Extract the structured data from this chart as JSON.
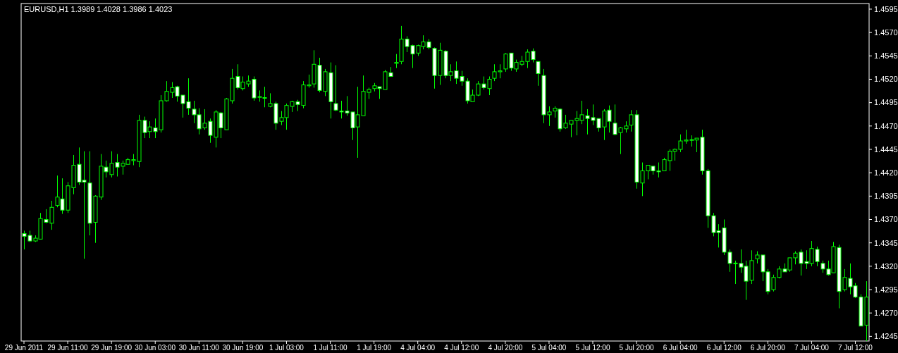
{
  "chart_data": {
    "type": "candlestick",
    "title": "EURUSD,H1  1.3989 1.4028 1.3986 1.4023",
    "color": "#00ff00",
    "categories": [
      "29 Jun 2011",
      null,
      null,
      null,
      null,
      null,
      null,
      null,
      "29 Jun 11:00",
      null,
      null,
      null,
      null,
      null,
      null,
      null,
      "29 Jun 19:00",
      null,
      null,
      null,
      null,
      null,
      null,
      null,
      "30 Jun 03:00",
      null,
      null,
      null,
      null,
      null,
      null,
      null,
      "30 Jun 11:00",
      null,
      null,
      null,
      null,
      null,
      null,
      null,
      "30 Jun 19:00",
      null,
      null,
      null,
      null,
      null,
      null,
      null,
      "1 Jul 03:00",
      null,
      null,
      null,
      null,
      null,
      null,
      null,
      "1 Jul 11:00",
      null,
      null,
      null,
      null,
      null,
      null,
      null,
      "1 Jul 19:00",
      null,
      null,
      null,
      null,
      null,
      null,
      null,
      "4 Jul 04:00",
      null,
      null,
      null,
      null,
      null,
      null,
      null,
      "4 Jul 12:00",
      null,
      null,
      null,
      null,
      null,
      null,
      null,
      "4 Jul 20:00",
      null,
      null,
      null,
      null,
      null,
      null,
      null,
      "5 Jul 04:00",
      null,
      null,
      null,
      null,
      null,
      null,
      null,
      "5 Jul 12:00",
      null,
      null,
      null,
      null,
      null,
      null,
      null,
      "5 Jul 20:00",
      null,
      null,
      null,
      null,
      null,
      null,
      null,
      "6 Jul 04:00",
      null,
      null,
      null,
      null,
      null,
      null,
      null,
      "6 Jul 12:00",
      null,
      null,
      null,
      null,
      null,
      null,
      null,
      "6 Jul 20:00",
      null,
      null,
      null,
      null,
      null,
      null,
      null,
      "7 Jul 04:00",
      null,
      null,
      null,
      null,
      null,
      null,
      null,
      "7 Jul 12:00",
      null,
      null
    ],
    "ohlc": [
      [
        1.4355,
        1.4358,
        1.4338,
        1.4352
      ],
      [
        1.4353,
        1.4358,
        1.4346,
        1.4347
      ],
      [
        1.4347,
        1.4353,
        1.4346,
        1.435
      ],
      [
        1.4349,
        1.4377,
        1.4349,
        1.4371
      ],
      [
        1.437,
        1.4381,
        1.4366,
        1.4367
      ],
      [
        1.4366,
        1.439,
        1.4359,
        1.4383
      ],
      [
        1.4385,
        1.4417,
        1.4383,
        1.4394
      ],
      [
        1.4392,
        1.4414,
        1.4376,
        1.438
      ],
      [
        1.438,
        1.441,
        1.4377,
        1.4406
      ],
      [
        1.4404,
        1.4439,
        1.4397,
        1.4428
      ],
      [
        1.4429,
        1.4447,
        1.4407,
        1.441
      ],
      [
        1.4412,
        1.4443,
        1.4328,
        1.441
      ],
      [
        1.4409,
        1.4443,
        1.4353,
        1.4366
      ],
      [
        1.4367,
        1.4396,
        1.4345,
        1.4395
      ],
      [
        1.4394,
        1.444,
        1.4391,
        1.4427
      ],
      [
        1.4426,
        1.4433,
        1.4415,
        1.4421
      ],
      [
        1.4418,
        1.4443,
        1.4415,
        1.443
      ],
      [
        1.4431,
        1.444,
        1.4416,
        1.4426
      ],
      [
        1.4427,
        1.4433,
        1.4418,
        1.443
      ],
      [
        1.4429,
        1.4436,
        1.4429,
        1.4434
      ],
      [
        1.4433,
        1.444,
        1.4428,
        1.4434
      ],
      [
        1.4432,
        1.4482,
        1.4426,
        1.4476
      ],
      [
        1.4476,
        1.448,
        1.4457,
        1.4463
      ],
      [
        1.4464,
        1.4475,
        1.4457,
        1.4469
      ],
      [
        1.4468,
        1.4478,
        1.4457,
        1.4464
      ],
      [
        1.4466,
        1.4503,
        1.4463,
        1.4497
      ],
      [
        1.4497,
        1.4518,
        1.4496,
        1.4507
      ],
      [
        1.4506,
        1.4517,
        1.45,
        1.4511
      ],
      [
        1.4512,
        1.4513,
        1.4496,
        1.4502
      ],
      [
        1.4503,
        1.4503,
        1.4479,
        1.4494
      ],
      [
        1.4496,
        1.4521,
        1.4482,
        1.4489
      ],
      [
        1.4488,
        1.4497,
        1.4473,
        1.4482
      ],
      [
        1.4482,
        1.4489,
        1.4461,
        1.4467
      ],
      [
        1.4468,
        1.4488,
        1.4466,
        1.4473
      ],
      [
        1.4475,
        1.4478,
        1.4452,
        1.446
      ],
      [
        1.4458,
        1.4487,
        1.4447,
        1.4485
      ],
      [
        1.4484,
        1.4485,
        1.4457,
        1.4468
      ],
      [
        1.4466,
        1.45,
        1.4466,
        1.4499
      ],
      [
        1.4497,
        1.4531,
        1.4494,
        1.4521
      ],
      [
        1.4523,
        1.4536,
        1.4509,
        1.4511
      ],
      [
        1.451,
        1.4523,
        1.4508,
        1.4517
      ],
      [
        1.4515,
        1.4524,
        1.4512,
        1.4518
      ],
      [
        1.452,
        1.4523,
        1.4497,
        1.45
      ],
      [
        1.4501,
        1.4508,
        1.4496,
        1.4501
      ],
      [
        1.45,
        1.4512,
        1.449,
        1.45
      ],
      [
        1.4491,
        1.4505,
        1.449,
        1.4494
      ],
      [
        1.4494,
        1.4496,
        1.4466,
        1.4473
      ],
      [
        1.4475,
        1.4486,
        1.4471,
        1.4479
      ],
      [
        1.4479,
        1.4494,
        1.4466,
        1.4492
      ],
      [
        1.4491,
        1.4497,
        1.4485,
        1.4496
      ],
      [
        1.4496,
        1.4498,
        1.4486,
        1.4493
      ],
      [
        1.4492,
        1.4518,
        1.4489,
        1.4514
      ],
      [
        1.4513,
        1.4525,
        1.4511,
        1.4514
      ],
      [
        1.4515,
        1.4551,
        1.4511,
        1.4536
      ],
      [
        1.4535,
        1.4543,
        1.4506,
        1.4508
      ],
      [
        1.4507,
        1.4531,
        1.4502,
        1.4528
      ],
      [
        1.4527,
        1.4538,
        1.4478,
        1.4496
      ],
      [
        1.4494,
        1.4535,
        1.4486,
        1.4487
      ],
      [
        1.4486,
        1.4497,
        1.4478,
        1.4485
      ],
      [
        1.4486,
        1.4502,
        1.4481,
        1.4484
      ],
      [
        1.4485,
        1.4485,
        1.4455,
        1.4468
      ],
      [
        1.4469,
        1.4512,
        1.4436,
        1.4482
      ],
      [
        1.4481,
        1.4524,
        1.4481,
        1.4507
      ],
      [
        1.4506,
        1.4511,
        1.4499,
        1.4509
      ],
      [
        1.451,
        1.4516,
        1.4507,
        1.4513
      ],
      [
        1.4512,
        1.4512,
        1.4499,
        1.451
      ],
      [
        1.4509,
        1.453,
        1.4509,
        1.4528
      ],
      [
        1.4527,
        1.4533,
        1.4523,
        1.4523
      ],
      [
        1.4537,
        1.4547,
        1.4532,
        1.4538
      ],
      [
        1.4539,
        1.4577,
        1.4536,
        1.4563
      ],
      [
        1.4563,
        1.4566,
        1.4549,
        1.4555
      ],
      [
        1.4556,
        1.4557,
        1.4532,
        1.4547
      ],
      [
        1.4548,
        1.4557,
        1.4545,
        1.4556
      ],
      [
        1.4555,
        1.4567,
        1.4552,
        1.456
      ],
      [
        1.456,
        1.4563,
        1.4552,
        1.4554
      ],
      [
        1.4553,
        1.4554,
        1.451,
        1.4524
      ],
      [
        1.4524,
        1.4559,
        1.4514,
        1.4551
      ],
      [
        1.455,
        1.4551,
        1.4521,
        1.4524
      ],
      [
        1.4524,
        1.4536,
        1.4518,
        1.4528
      ],
      [
        1.4529,
        1.4539,
        1.4515,
        1.4521
      ],
      [
        1.4523,
        1.4529,
        1.4513,
        1.4518
      ],
      [
        1.4518,
        1.4521,
        1.4494,
        1.4497
      ],
      [
        1.4496,
        1.4509,
        1.4496,
        1.4503
      ],
      [
        1.4503,
        1.4518,
        1.4502,
        1.4515
      ],
      [
        1.4515,
        1.4523,
        1.4509,
        1.4511
      ],
      [
        1.451,
        1.4523,
        1.4503,
        1.452
      ],
      [
        1.4521,
        1.4536,
        1.4518,
        1.4528
      ],
      [
        1.4528,
        1.4536,
        1.4521,
        1.4529
      ],
      [
        1.4531,
        1.4548,
        1.4528,
        1.4547
      ],
      [
        1.4548,
        1.4548,
        1.4529,
        1.4532
      ],
      [
        1.4531,
        1.4541,
        1.4528,
        1.4538
      ],
      [
        1.4536,
        1.4545,
        1.4534,
        1.4539
      ],
      [
        1.4539,
        1.4552,
        1.4532,
        1.4549
      ],
      [
        1.455,
        1.4553,
        1.4538,
        1.4541
      ],
      [
        1.4539,
        1.4539,
        1.4513,
        1.4526
      ],
      [
        1.4524,
        1.4531,
        1.4473,
        1.4482
      ],
      [
        1.4482,
        1.4491,
        1.447,
        1.4485
      ],
      [
        1.4486,
        1.4491,
        1.4479,
        1.4489
      ],
      [
        1.4488,
        1.4489,
        1.4464,
        1.4467
      ],
      [
        1.4468,
        1.4482,
        1.4467,
        1.4473
      ],
      [
        1.4472,
        1.4476,
        1.4458,
        1.4476
      ],
      [
        1.4476,
        1.4486,
        1.446,
        1.4478
      ],
      [
        1.4476,
        1.4497,
        1.4472,
        1.4482
      ],
      [
        1.4481,
        1.4488,
        1.4461,
        1.4478
      ],
      [
        1.4479,
        1.4493,
        1.4471,
        1.4476
      ],
      [
        1.4478,
        1.4478,
        1.4464,
        1.4468
      ],
      [
        1.4469,
        1.4488,
        1.4455,
        1.4486
      ],
      [
        1.4487,
        1.4492,
        1.4463,
        1.4475
      ],
      [
        1.4473,
        1.4493,
        1.446,
        1.4461
      ],
      [
        1.4463,
        1.4469,
        1.444,
        1.4468
      ],
      [
        1.4467,
        1.4475,
        1.4463,
        1.447
      ],
      [
        1.4471,
        1.4487,
        1.4464,
        1.4482
      ],
      [
        1.4482,
        1.4487,
        1.4403,
        1.441
      ],
      [
        1.4409,
        1.4431,
        1.4395,
        1.4422
      ],
      [
        1.4422,
        1.4428,
        1.4413,
        1.4428
      ],
      [
        1.4427,
        1.4427,
        1.4418,
        1.4422
      ],
      [
        1.4422,
        1.4431,
        1.4415,
        1.4421
      ],
      [
        1.4422,
        1.4436,
        1.4422,
        1.4434
      ],
      [
        1.4433,
        1.4445,
        1.4422,
        1.4443
      ],
      [
        1.4443,
        1.4446,
        1.4433,
        1.4445
      ],
      [
        1.4445,
        1.4461,
        1.4442,
        1.4454
      ],
      [
        1.4454,
        1.4466,
        1.4451,
        1.4455
      ],
      [
        1.4455,
        1.446,
        1.4448,
        1.4455
      ],
      [
        1.4455,
        1.4457,
        1.4442,
        1.4457
      ],
      [
        1.4458,
        1.4466,
        1.4418,
        1.4422
      ],
      [
        1.4422,
        1.4424,
        1.4361,
        1.4374
      ],
      [
        1.4374,
        1.4377,
        1.4352,
        1.4356
      ],
      [
        1.4358,
        1.4365,
        1.434,
        1.4356
      ],
      [
        1.4361,
        1.437,
        1.4332,
        1.4335
      ],
      [
        1.4335,
        1.4338,
        1.4314,
        1.4323
      ],
      [
        1.4323,
        1.4326,
        1.4301,
        1.4323
      ],
      [
        1.4323,
        1.4338,
        1.4313,
        1.4319
      ],
      [
        1.432,
        1.4326,
        1.4284,
        1.4304
      ],
      [
        1.4305,
        1.4337,
        1.4301,
        1.4326
      ],
      [
        1.4328,
        1.4336,
        1.4323,
        1.4332
      ],
      [
        1.4332,
        1.4332,
        1.4304,
        1.4314
      ],
      [
        1.4314,
        1.4317,
        1.429,
        1.4293
      ],
      [
        1.4295,
        1.4311,
        1.4293,
        1.4308
      ],
      [
        1.4308,
        1.432,
        1.4307,
        1.4317
      ],
      [
        1.4317,
        1.4323,
        1.4314,
        1.4314
      ],
      [
        1.4316,
        1.4329,
        1.4314,
        1.4329
      ],
      [
        1.4329,
        1.4336,
        1.4322,
        1.4334
      ],
      [
        1.4335,
        1.4338,
        1.431,
        1.4323
      ],
      [
        1.4325,
        1.4337,
        1.4317,
        1.4323
      ],
      [
        1.4323,
        1.4347,
        1.432,
        1.4339
      ],
      [
        1.4338,
        1.4341,
        1.432,
        1.4325
      ],
      [
        1.4323,
        1.4326,
        1.4313,
        1.4317
      ],
      [
        1.4317,
        1.4326,
        1.431,
        1.4311
      ],
      [
        1.4313,
        1.4346,
        1.4313,
        1.4341
      ],
      [
        1.434,
        1.4343,
        1.4275,
        1.4293
      ],
      [
        1.4295,
        1.4317,
        1.4293,
        1.4308
      ],
      [
        1.4307,
        1.4323,
        1.429,
        1.4298
      ],
      [
        1.4299,
        1.4302,
        1.4286,
        1.4287
      ],
      [
        1.4287,
        1.429,
        1.4256,
        1.4256
      ],
      [
        1.4257,
        1.4304,
        1.424,
        1.4287
      ]
    ],
    "ylim": [
      1.424,
      1.4601
    ],
    "yticks": [
      1.4245,
      {
        "value": 1.427,
        "label": "1.4270"
      },
      1.4295,
      {
        "value": 1.432,
        "label": "1.4320"
      },
      1.4345,
      {
        "value": 1.437,
        "label": "1.4370"
      },
      1.4395,
      {
        "value": 1.442,
        "label": "1.4420"
      },
      1.4445,
      {
        "value": 1.447,
        "label": "1.4470"
      },
      1.4495,
      {
        "value": 1.452,
        "label": "1.4520"
      },
      1.4545,
      {
        "value": 1.457,
        "label": "1.4570"
      },
      1.4595
    ]
  }
}
